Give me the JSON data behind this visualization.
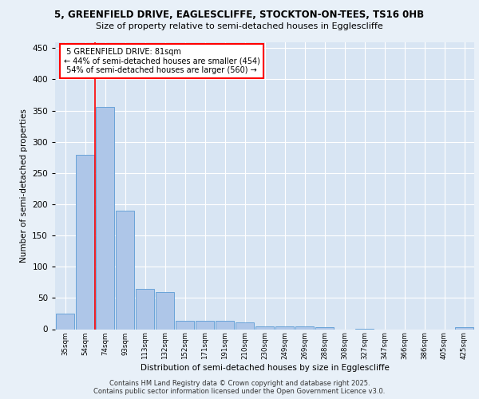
{
  "title_line1": "5, GREENFIELD DRIVE, EAGLESCLIFFE, STOCKTON-ON-TEES, TS16 0HB",
  "title_line2": "Size of property relative to semi-detached houses in Egglescliffe",
  "xlabel": "Distribution of semi-detached houses by size in Egglescliffe",
  "ylabel": "Number of semi-detached properties",
  "categories": [
    "35sqm",
    "54sqm",
    "74sqm",
    "93sqm",
    "113sqm",
    "132sqm",
    "152sqm",
    "171sqm",
    "191sqm",
    "210sqm",
    "230sqm",
    "249sqm",
    "269sqm",
    "288sqm",
    "308sqm",
    "327sqm",
    "347sqm",
    "366sqm",
    "386sqm",
    "405sqm",
    "425sqm"
  ],
  "values": [
    25,
    279,
    356,
    190,
    64,
    59,
    14,
    13,
    13,
    11,
    5,
    5,
    4,
    3,
    0,
    1,
    0,
    0,
    0,
    0,
    3
  ],
  "bar_color": "#aec6e8",
  "bar_edge_color": "#5b9bd5",
  "property_label": "5 GREENFIELD DRIVE: 81sqm",
  "pct_smaller": 44,
  "count_smaller": 454,
  "pct_larger": 54,
  "count_larger": 560,
  "redline_x": 1.5,
  "ylim": [
    0,
    460
  ],
  "yticks": [
    0,
    50,
    100,
    150,
    200,
    250,
    300,
    350,
    400,
    450
  ],
  "background_color": "#e8f0f8",
  "plot_bg_color": "#d8e5f3",
  "footer_line1": "Contains HM Land Registry data © Crown copyright and database right 2025.",
  "footer_line2": "Contains public sector information licensed under the Open Government Licence v3.0."
}
